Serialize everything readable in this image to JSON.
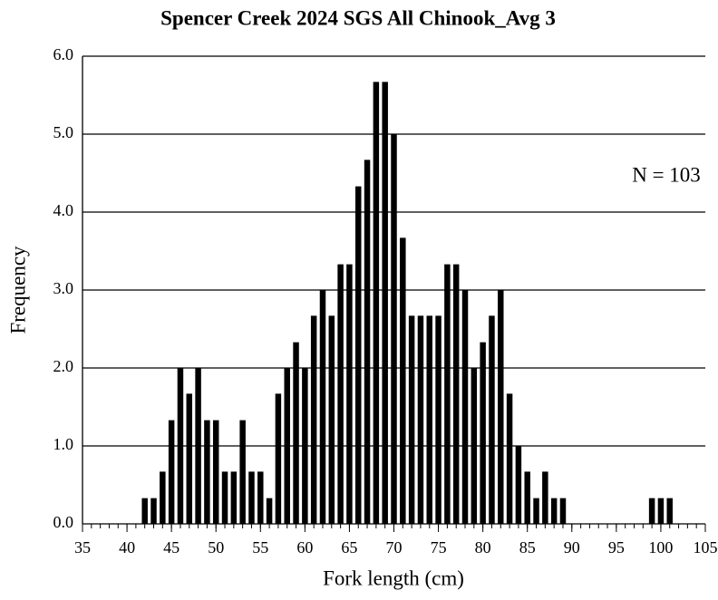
{
  "chart_data": {
    "type": "bar",
    "title": "Spencer Creek 2024 SGS All Chinook_Avg 3",
    "x_label": "Fork length (cm)",
    "y_label": "Frequency",
    "annotation": "N = 103",
    "x": [
      42,
      43,
      44,
      45,
      46,
      47,
      48,
      49,
      50,
      51,
      52,
      53,
      54,
      55,
      56,
      57,
      58,
      59,
      60,
      61,
      62,
      63,
      64,
      65,
      66,
      67,
      68,
      69,
      70,
      71,
      72,
      73,
      74,
      75,
      76,
      77,
      78,
      79,
      80,
      81,
      82,
      83,
      84,
      85,
      86,
      87,
      88,
      89,
      90,
      91,
      92,
      93,
      94,
      95,
      96,
      97,
      98,
      99,
      100,
      101
    ],
    "values": [
      0.33,
      0.33,
      0.67,
      1.33,
      2.0,
      1.67,
      2.0,
      1.33,
      1.33,
      0.67,
      0.67,
      1.33,
      0.67,
      0.67,
      0.33,
      1.67,
      2.0,
      2.33,
      2.0,
      2.67,
      3.0,
      2.67,
      3.33,
      3.33,
      4.33,
      4.67,
      5.67,
      5.67,
      5.0,
      3.67,
      2.67,
      2.67,
      2.67,
      2.67,
      3.33,
      3.33,
      3.0,
      2.0,
      2.33,
      2.67,
      3.0,
      1.67,
      1.0,
      0.67,
      0.33,
      0.67,
      0.33,
      0.33,
      0,
      0,
      0,
      0,
      0,
      0,
      0,
      0,
      0,
      0.33,
      0.33,
      0.33
    ],
    "color": "#000000",
    "xlim": [
      35,
      105
    ],
    "xticks": [
      35,
      40,
      45,
      50,
      55,
      60,
      65,
      70,
      75,
      80,
      85,
      90,
      95,
      100,
      105
    ],
    "xminorticks": [
      35,
      36,
      37,
      38,
      39,
      40,
      41,
      42,
      43,
      44,
      45,
      46,
      47,
      48,
      49,
      50,
      51,
      52,
      53,
      54,
      55,
      56,
      57,
      58,
      59,
      60,
      61,
      62,
      63,
      64,
      65,
      66,
      67,
      68,
      69,
      70,
      71,
      72,
      73,
      74,
      75,
      76,
      77,
      78,
      79,
      80,
      81,
      82,
      83,
      84,
      85,
      86,
      87,
      88,
      89,
      90,
      91,
      92,
      93,
      94,
      95,
      96,
      97,
      98,
      99,
      100,
      101,
      102,
      103,
      104,
      105
    ],
    "ylim": [
      0,
      6
    ],
    "yticks": [
      {
        "value": 0,
        "label": "0.0"
      },
      {
        "value": 1,
        "label": "1.0"
      },
      {
        "value": 2,
        "label": "2.0"
      },
      {
        "value": 3,
        "label": "3.0"
      },
      {
        "value": 4,
        "label": "4.0"
      },
      {
        "value": 5,
        "label": "5.0"
      },
      {
        "value": 6,
        "label": "6.0"
      }
    ],
    "grid": true
  }
}
